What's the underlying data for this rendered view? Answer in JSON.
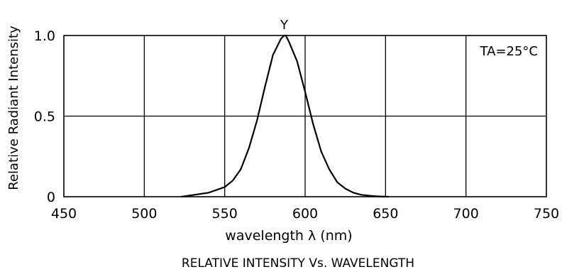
{
  "chart_data": {
    "type": "line",
    "title": "RELATIVE INTENSITY Vs. WAVELENGTH",
    "xlabel": "wavelength λ (nm)",
    "ylabel": "Relative Radiant Intensity",
    "xlim": [
      450,
      750
    ],
    "ylim": [
      0,
      1.0
    ],
    "x_ticks": [
      450,
      500,
      550,
      600,
      650,
      700,
      750
    ],
    "y_ticks": [
      {
        "value": 0,
        "label": "0"
      },
      {
        "value": 0.5,
        "label": "0.5"
      },
      {
        "value": 1.0,
        "label": "1.0"
      }
    ],
    "grid": true,
    "annotation": "TA=25°C",
    "series": [
      {
        "name": "Y",
        "x": [
          523,
          530,
          540,
          550,
          555,
          560,
          565,
          570,
          575,
          580,
          585,
          587,
          588,
          590,
          595,
          600,
          605,
          610,
          615,
          620,
          625,
          630,
          635,
          640,
          645,
          652
        ],
        "y": [
          0.0,
          0.01,
          0.025,
          0.06,
          0.1,
          0.17,
          0.3,
          0.47,
          0.68,
          0.88,
          0.98,
          1.0,
          1.0,
          0.96,
          0.84,
          0.65,
          0.45,
          0.28,
          0.17,
          0.09,
          0.05,
          0.025,
          0.012,
          0.006,
          0.002,
          0.0
        ]
      }
    ]
  }
}
